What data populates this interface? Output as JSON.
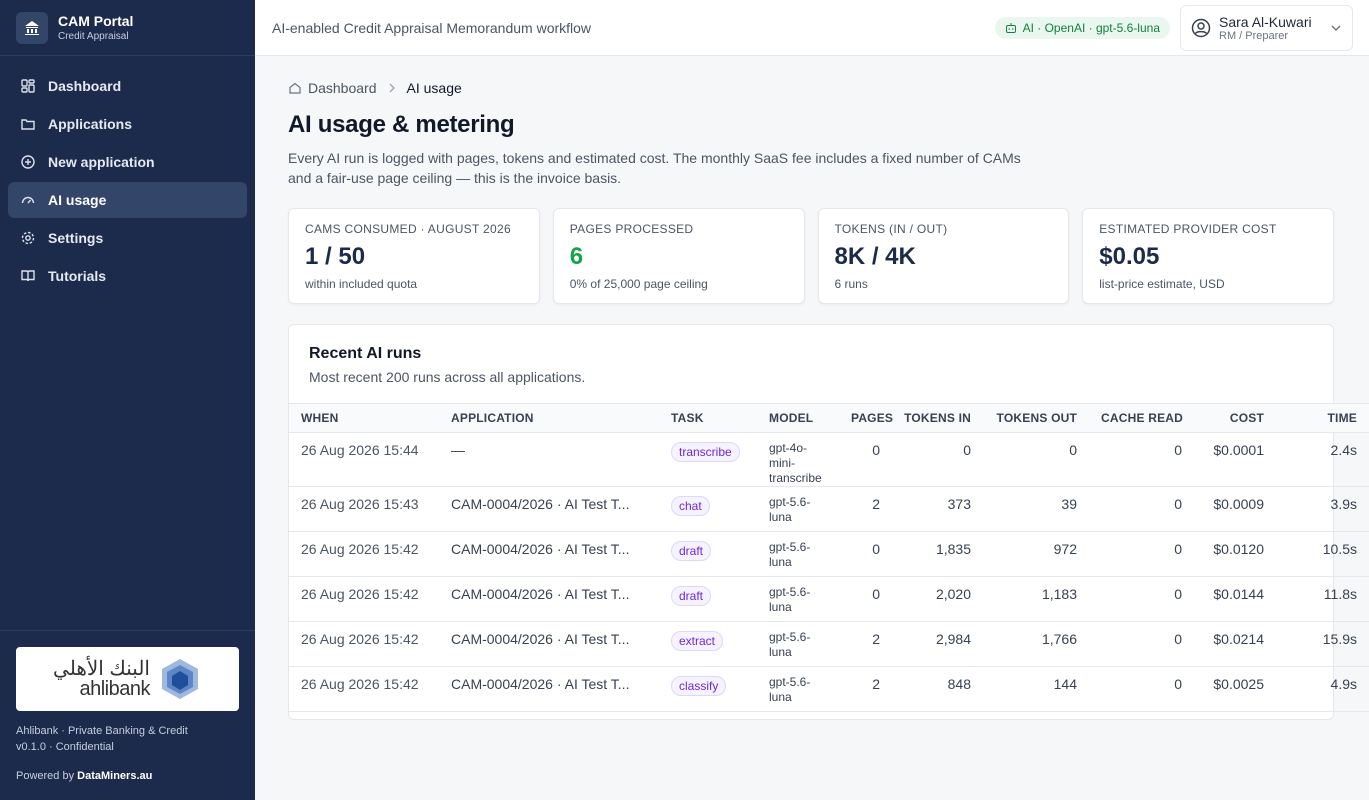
{
  "sidebar": {
    "brand": {
      "title": "CAM Portal",
      "subtitle": "Credit Appraisal"
    },
    "nav": [
      {
        "label": "Dashboard",
        "active": false
      },
      {
        "label": "Applications",
        "active": false
      },
      {
        "label": "New application",
        "active": false
      },
      {
        "label": "AI usage",
        "active": true
      },
      {
        "label": "Settings",
        "active": false
      },
      {
        "label": "Tutorials",
        "active": false
      }
    ],
    "logo": {
      "arabic": "البنك الأهلي",
      "latin": "ahlibank"
    },
    "footer": {
      "org": "Ahlibank · Private Banking & Credit",
      "version": "v0.1.0 · Confidential",
      "powered": "Powered by",
      "vendor": "DataMiners.au"
    }
  },
  "header": {
    "tagline": "AI-enabled Credit Appraisal Memorandum workflow",
    "ai_badge": "AI · OpenAI · gpt-5.6-luna",
    "user": {
      "name": "Sara Al-Kuwari",
      "role": "RM / Preparer"
    }
  },
  "breadcrumb": [
    "Dashboard",
    "AI usage"
  ],
  "page": {
    "title": "AI usage & metering",
    "description": "Every AI run is logged with pages, tokens and estimated cost. The monthly SaaS fee includes a fixed number of CAMs and a fair-use page ceiling — this is the invoice basis."
  },
  "cards": [
    {
      "label": "CAMS CONSUMED · AUGUST 2026",
      "value": "1 / 50",
      "note": "within included quota",
      "accent": false
    },
    {
      "label": "PAGES PROCESSED",
      "value": "6",
      "note": "0% of 25,000 page ceiling",
      "accent": true
    },
    {
      "label": "TOKENS (IN / OUT)",
      "value": "8K / 4K",
      "note": "6 runs",
      "accent": false
    },
    {
      "label": "ESTIMATED PROVIDER COST",
      "value": "$0.05",
      "note": "list-price estimate, USD",
      "accent": false
    }
  ],
  "table": {
    "title": "Recent AI runs",
    "subtitle": "Most recent 200 runs across all applications.",
    "columns": [
      "WHEN",
      "APPLICATION",
      "TASK",
      "MODEL",
      "PAGES",
      "TOKENS IN",
      "TOKENS OUT",
      "CACHE READ",
      "COST",
      "TIME"
    ],
    "rows": [
      [
        "26 Aug 2026 15:44",
        "—",
        "transcribe",
        "gpt-4o-mini-transcribe",
        "0",
        "0",
        "0",
        "0",
        "$0.0001",
        "2.4s"
      ],
      [
        "26 Aug 2026 15:43",
        "CAM-0004/2026 · AI Test T...",
        "chat",
        "gpt-5.6-luna",
        "2",
        "373",
        "39",
        "0",
        "$0.0009",
        "3.9s"
      ],
      [
        "26 Aug 2026 15:42",
        "CAM-0004/2026 · AI Test T...",
        "draft",
        "gpt-5.6-luna",
        "0",
        "1,835",
        "972",
        "0",
        "$0.0120",
        "10.5s"
      ],
      [
        "26 Aug 2026 15:42",
        "CAM-0004/2026 · AI Test T...",
        "draft",
        "gpt-5.6-luna",
        "0",
        "2,020",
        "1,183",
        "0",
        "$0.0144",
        "11.8s"
      ],
      [
        "26 Aug 2026 15:42",
        "CAM-0004/2026 · AI Test T...",
        "extract",
        "gpt-5.6-luna",
        "2",
        "2,984",
        "1,766",
        "0",
        "$0.0214",
        "15.9s"
      ],
      [
        "26 Aug 2026 15:42",
        "CAM-0004/2026 · AI Test T...",
        "classify",
        "gpt-5.6-luna",
        "2",
        "848",
        "144",
        "0",
        "$0.0025",
        "4.9s"
      ]
    ]
  }
}
